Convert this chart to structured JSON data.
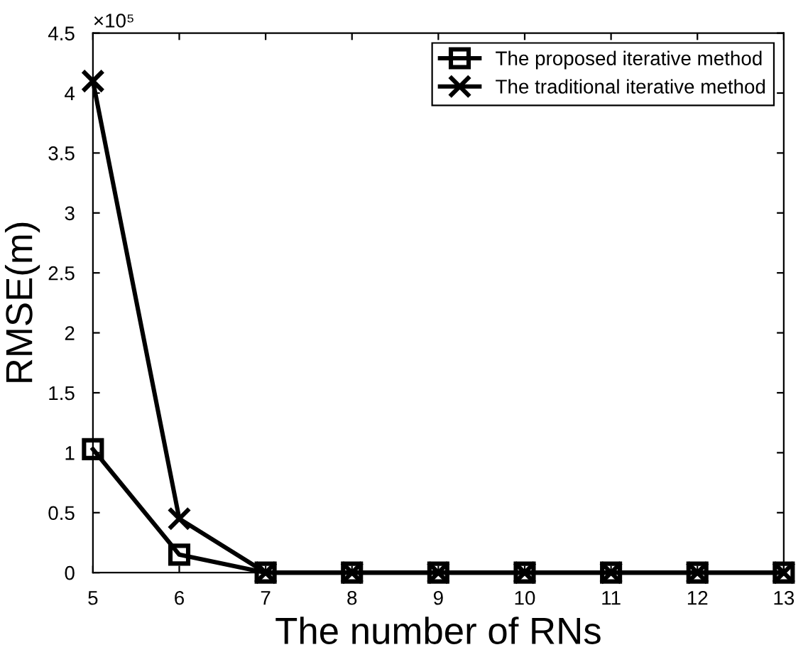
{
  "chart_data": {
    "type": "line",
    "xlabel": "The number of RNs",
    "ylabel": "RMSE(m)",
    "x": [
      5,
      6,
      7,
      8,
      9,
      10,
      11,
      12,
      13
    ],
    "series": [
      {
        "name": "The proposed iterative method",
        "color": "#000000",
        "marker": "square",
        "values": [
          1.03,
          0.15,
          0,
          0,
          0,
          0,
          0,
          0,
          0
        ]
      },
      {
        "name": "The traditional iterative method",
        "color": "#000000",
        "marker": "cross",
        "values": [
          4.1,
          0.45,
          0,
          0,
          0,
          0,
          0,
          0,
          0
        ]
      }
    ],
    "xlim": [
      5,
      13
    ],
    "xticks": [
      5,
      6,
      7,
      8,
      9,
      10,
      11,
      12,
      13
    ],
    "ylim": [
      0,
      4.5
    ],
    "yticks": [
      0,
      0.5,
      1,
      1.5,
      2,
      2.5,
      3,
      3.5,
      4,
      4.5
    ],
    "annotations": [
      "×10⁵"
    ],
    "legend": "top right",
    "grid": false,
    "line_style": "solid"
  }
}
